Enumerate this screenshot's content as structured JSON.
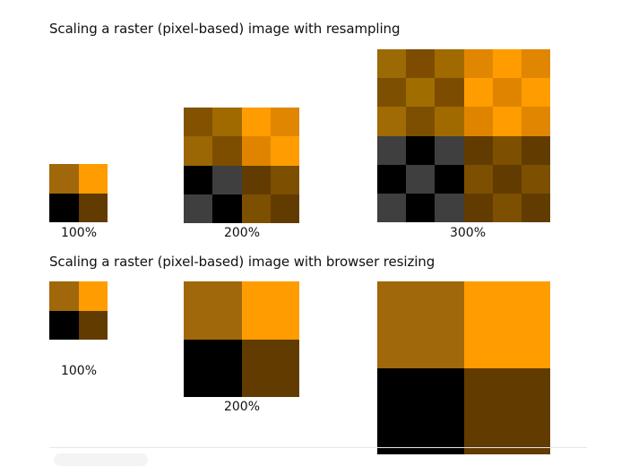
{
  "section_resampling": {
    "title": "Scaling a raster (pixel-based) image with resampling",
    "images": [
      {
        "label": "100%",
        "cols": 2,
        "pixels": [
          [
            "#a0680a",
            "#ff9c00"
          ],
          [
            "#000000",
            "#623b00"
          ]
        ]
      },
      {
        "label": "200%",
        "cols": 4,
        "pixels": [
          [
            "#825200",
            "#a06a00",
            "#ff9c00",
            "#e08600"
          ],
          [
            "#9b6704",
            "#7d4d00",
            "#e08400",
            "#ff9c00"
          ],
          [
            "#000000",
            "#3f3f3f",
            "#623b00",
            "#7d4f00"
          ],
          [
            "#3f3f3f",
            "#000000",
            "#7d4f00",
            "#623b00"
          ]
        ]
      },
      {
        "label": "300%",
        "cols": 6,
        "pixels": [
          [
            "#9b6a04",
            "#7d4c00",
            "#a06a00",
            "#e08600",
            "#ff9c00",
            "#e08600"
          ],
          [
            "#7d4f00",
            "#a06e00",
            "#7d4c00",
            "#ff9c00",
            "#e08400",
            "#ff9c00"
          ],
          [
            "#a06a04",
            "#7d4f00",
            "#a06a00",
            "#e08400",
            "#ff9c00",
            "#e08600"
          ],
          [
            "#3f3f3f",
            "#000000",
            "#3f3f3f",
            "#623b00",
            "#7d4f00",
            "#623b00"
          ],
          [
            "#000000",
            "#3f3f3f",
            "#000000",
            "#7d4f00",
            "#623b00",
            "#7d4f00"
          ],
          [
            "#3f3f3f",
            "#000000",
            "#3f3f3f",
            "#623b00",
            "#7d4f00",
            "#623b00"
          ]
        ]
      }
    ]
  },
  "section_browser": {
    "title": "Scaling a raster (pixel-based) image with browser resizing",
    "images": [
      {
        "label": "100%",
        "cols": 2,
        "pixels": [
          [
            "#a0680a",
            "#ff9c00"
          ],
          [
            "#000000",
            "#623b00"
          ]
        ]
      },
      {
        "label": "200%",
        "cols": 2,
        "pixels": [
          [
            "#a0680a",
            "#ff9c00"
          ],
          [
            "#000000",
            "#623b00"
          ]
        ]
      },
      {
        "label": "",
        "cols": 2,
        "pixels": [
          [
            "#a0680a",
            "#ff9c00"
          ],
          [
            "#000000",
            "#623b00"
          ]
        ]
      }
    ]
  }
}
